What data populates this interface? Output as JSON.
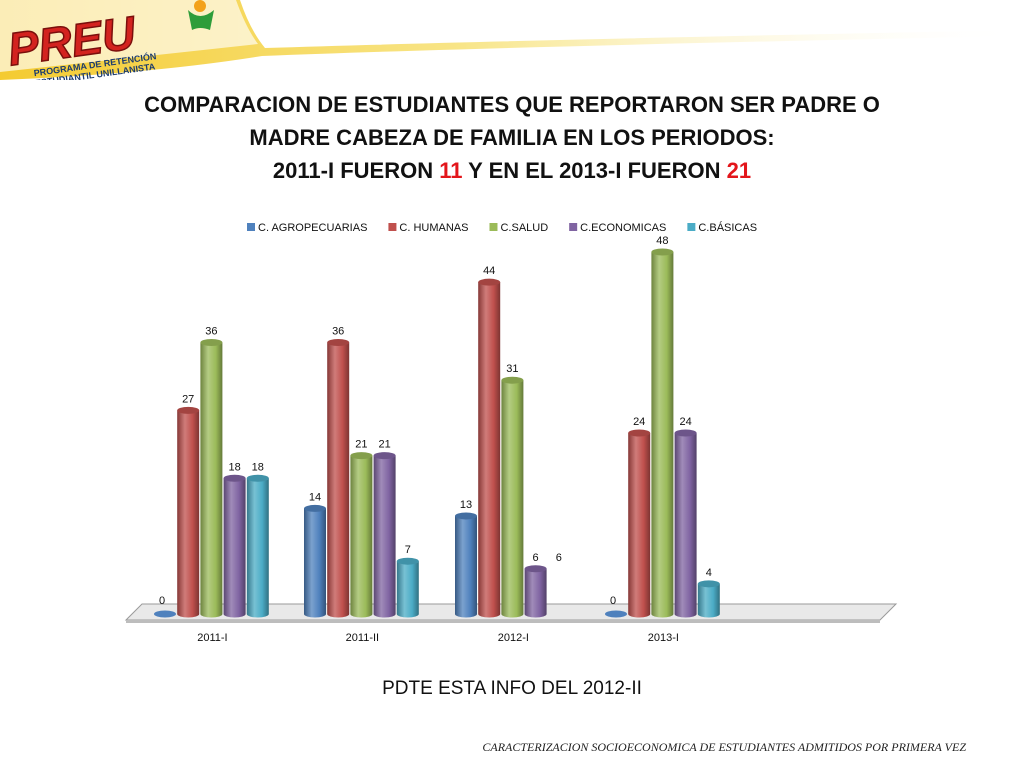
{
  "logo": {
    "wordmark": "PREU",
    "tagline_line1": "PROGRAMA DE RETENCIÓN",
    "tagline_line2": "ESTUDIANTIL UNILLANISTA"
  },
  "title": {
    "line1": "COMPARACION DE ESTUDIANTES QUE REPORTARON SER PADRE O",
    "line2": "MADRE CABEZA DE FAMILIA EN LOS PERIODOS:",
    "line3_a": "2011-I  FUERON ",
    "line3_n1": "11",
    "line3_b": " Y EN EL 2013-I FUERON ",
    "line3_n2": "21"
  },
  "chart_data": {
    "type": "bar",
    "categories": [
      "2011-I",
      "2011-II",
      "2012-I",
      "2013-I"
    ],
    "series": [
      {
        "name": "C. AGROPECUARIAS",
        "color": "#4f81bd",
        "values": [
          0,
          14,
          13,
          0
        ]
      },
      {
        "name": "C. HUMANAS",
        "color": "#c0504d",
        "values": [
          27,
          36,
          44,
          24
        ]
      },
      {
        "name": "C.SALUD",
        "color": "#9bbb59",
        "values": [
          36,
          21,
          31,
          48
        ]
      },
      {
        "name": "C.ECONOMICAS",
        "color": "#8064a2",
        "values": [
          18,
          21,
          6,
          24
        ]
      },
      {
        "name": "C.BÁSICAS",
        "color": "#4bacc6",
        "values": [
          18,
          7,
          6,
          4
        ]
      }
    ],
    "value_labels": [
      [
        "0",
        "27",
        "36",
        "18",
        "18"
      ],
      [
        "14",
        "36",
        "21",
        "21",
        "7"
      ],
      [
        "13",
        "44",
        "31",
        "6",
        "6"
      ],
      [
        "0",
        "24",
        "48",
        "24",
        "4"
      ]
    ],
    "hidden_bars": [
      [
        2,
        4
      ]
    ],
    "legend_position": "top",
    "grid": false,
    "style": "3d-cylinder"
  },
  "note": "PDTE ESTA INFO DEL 2012-II",
  "footer": "CARACTERIZACION SOCIOECONOMICA DE ESTUDIANTES ADMITIDOS POR PRIMERA VEZ"
}
